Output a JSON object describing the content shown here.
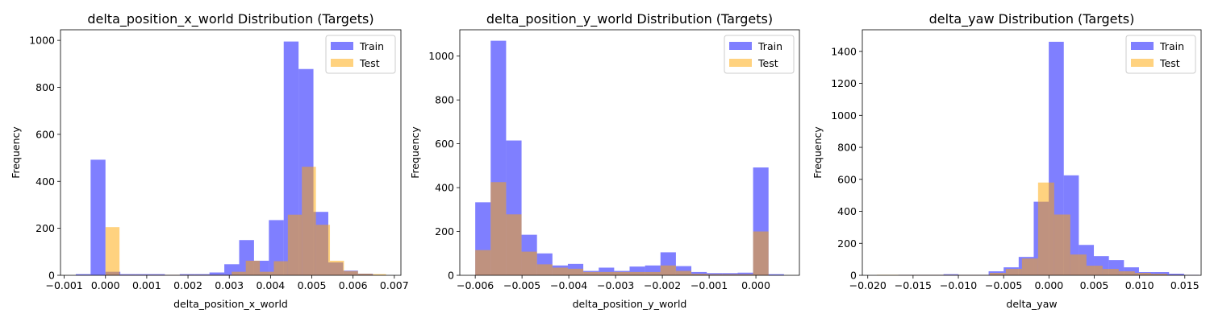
{
  "chart_data": [
    {
      "type": "bar",
      "title": "delta_position_x_world Distribution (Targets)",
      "xlabel": "delta_position_x_world",
      "ylabel": "Frequency",
      "xlim": [
        -0.00109,
        0.00716
      ],
      "ylim": [
        0,
        1045
      ],
      "xticks": [
        -0.001,
        0.0,
        0.001,
        0.002,
        0.003,
        0.004,
        0.005,
        0.006,
        0.007
      ],
      "xtick_labels": [
        "−0.001",
        "0.000",
        "0.001",
        "0.002",
        "0.003",
        "0.004",
        "0.005",
        "0.006",
        "0.007"
      ],
      "yticks": [
        0,
        200,
        400,
        600,
        800,
        1000
      ],
      "ytick_labels": [
        "0",
        "200",
        "400",
        "600",
        "800",
        "1000"
      ],
      "legend_position": "top-right",
      "grid": false,
      "series": [
        {
          "name": "Train",
          "color": "#0000ff",
          "opacity": 0.5,
          "bins": [
            -0.00072,
            -0.00036,
            0.0,
            0.00036,
            0.00072,
            0.00108,
            0.00144,
            0.0018,
            0.00216,
            0.00252,
            0.00288,
            0.00324,
            0.0036,
            0.00396,
            0.00432,
            0.00468,
            0.00504,
            0.0054,
            0.00576,
            0.00612,
            0.00648
          ],
          "counts": [
            5,
            492,
            15,
            5,
            5,
            5,
            2,
            5,
            5,
            12,
            47,
            150,
            62,
            235,
            995,
            878,
            270,
            55,
            20,
            7
          ]
        },
        {
          "name": "Test",
          "color": "#ffa500",
          "opacity": 0.5,
          "bins": [
            0.0,
            0.00034,
            0.00068,
            0.00102,
            0.00136,
            0.0017,
            0.00204,
            0.00238,
            0.00272,
            0.00306,
            0.0034,
            0.00374,
            0.00408,
            0.00442,
            0.00476,
            0.0051,
            0.00544,
            0.00578,
            0.00612,
            0.00646,
            0.0068
          ],
          "counts": [
            205,
            2,
            2,
            2,
            2,
            2,
            2,
            2,
            2,
            15,
            62,
            15,
            60,
            258,
            462,
            215,
            62,
            18,
            7,
            5
          ]
        }
      ]
    },
    {
      "type": "bar",
      "title": "delta_position_y_world Distribution (Targets)",
      "xlabel": "delta_position_y_world",
      "ylabel": "Frequency",
      "xlim": [
        -0.00633,
        0.00093
      ],
      "ylim": [
        0,
        1120
      ],
      "xticks": [
        -0.006,
        -0.005,
        -0.004,
        -0.003,
        -0.002,
        -0.001,
        0.0
      ],
      "xtick_labels": [
        "−0.006",
        "−0.005",
        "−0.004",
        "−0.003",
        "−0.002",
        "−0.001",
        "0.000"
      ],
      "yticks": [
        0,
        200,
        400,
        600,
        800,
        1000
      ],
      "ytick_labels": [
        "0",
        "200",
        "400",
        "600",
        "800",
        "1000"
      ],
      "legend_position": "top-right",
      "grid": false,
      "series": [
        {
          "name": "Train",
          "color": "#0000ff",
          "opacity": 0.5,
          "bins": [
            -0.006,
            -0.00567,
            -0.00534,
            -0.00501,
            -0.00468,
            -0.00435,
            -0.00402,
            -0.00369,
            -0.00336,
            -0.00303,
            -0.0027,
            -0.00237,
            -0.00204,
            -0.00171,
            -0.00138,
            -0.00105,
            -0.00072,
            -0.00039,
            -6e-05,
            0.00027,
            0.0006
          ],
          "counts": [
            333,
            1070,
            615,
            185,
            100,
            45,
            52,
            20,
            35,
            20,
            40,
            45,
            105,
            42,
            15,
            10,
            10,
            12,
            492,
            5
          ]
        },
        {
          "name": "Test",
          "color": "#ffa500",
          "opacity": 0.5,
          "bins": [
            -0.006,
            -0.00567,
            -0.00534,
            -0.00501,
            -0.00468,
            -0.00435,
            -0.00402,
            -0.00369,
            -0.00336,
            -0.00303,
            -0.0027,
            -0.00237,
            -0.00204,
            -0.00171,
            -0.00138,
            -0.00105,
            -0.00072,
            -0.00039,
            -6e-05,
            0.00027,
            0.0006
          ],
          "counts": [
            115,
            425,
            278,
            108,
            50,
            35,
            30,
            15,
            15,
            15,
            15,
            15,
            45,
            20,
            7,
            5,
            5,
            5,
            200,
            0
          ]
        }
      ]
    },
    {
      "type": "bar",
      "title": "delta_yaw Distribution (Targets)",
      "xlabel": "delta_yaw",
      "ylabel": "Frequency",
      "xlim": [
        -0.0206,
        0.0168
      ],
      "ylim": [
        0,
        1535
      ],
      "xticks": [
        -0.02,
        -0.015,
        -0.01,
        -0.005,
        0.0,
        0.005,
        0.01,
        0.015
      ],
      "xtick_labels": [
        "−0.020",
        "−0.015",
        "−0.010",
        "−0.005",
        "0.000",
        "0.005",
        "0.010",
        "0.015"
      ],
      "yticks": [
        0,
        200,
        400,
        600,
        800,
        1000,
        1200,
        1400
      ],
      "ytick_labels": [
        "0",
        "200",
        "400",
        "600",
        "800",
        "1000",
        "1200",
        "1400"
      ],
      "legend_position": "top-right",
      "grid": false,
      "series": [
        {
          "name": "Train",
          "color": "#0000ff",
          "opacity": 0.5,
          "bins": [
            -0.01662,
            -0.01496,
            -0.0133,
            -0.01164,
            -0.00998,
            -0.00832,
            -0.00666,
            -0.005,
            -0.00334,
            -0.00168,
            -2e-05,
            0.00164,
            0.0033,
            0.00496,
            0.00662,
            0.00828,
            0.00994,
            0.0116,
            0.01326,
            0.01492,
            0.01658
          ],
          "counts": [
            3,
            3,
            3,
            7,
            3,
            3,
            25,
            50,
            115,
            460,
            1460,
            625,
            190,
            120,
            95,
            50,
            20,
            20,
            10,
            3
          ]
        },
        {
          "name": "Test",
          "color": "#ffa500",
          "opacity": 0.5,
          "bins": [
            -0.019,
            -0.01722,
            -0.01544,
            -0.01366,
            -0.01188,
            -0.0101,
            -0.00832,
            -0.00654,
            -0.00476,
            -0.00298,
            -0.0012,
            0.00058,
            0.00236,
            0.00414,
            0.00592,
            0.0077,
            0.00948,
            0.01126,
            0.01304,
            0.01482,
            0.0166
          ],
          "counts": [
            3,
            3,
            3,
            3,
            3,
            3,
            3,
            15,
            40,
            105,
            580,
            380,
            130,
            60,
            40,
            25,
            15,
            10,
            3,
            2
          ]
        }
      ]
    }
  ]
}
